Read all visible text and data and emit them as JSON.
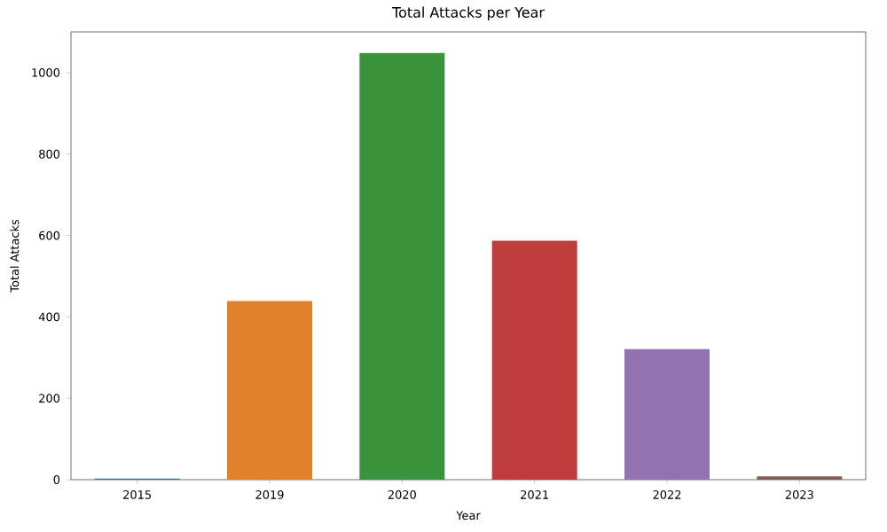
{
  "chart_data": {
    "type": "bar",
    "title": "Total Attacks per Year",
    "xlabel": "Year",
    "ylabel": "Total Attacks",
    "categories": [
      "2015",
      "2019",
      "2020",
      "2021",
      "2022",
      "2023"
    ],
    "values": [
      3,
      439,
      1048,
      587,
      321,
      8
    ],
    "colors": [
      "#3274a1",
      "#e1812c",
      "#3a923a",
      "#c03d3e",
      "#9372b2",
      "#845b53"
    ],
    "ylim": [
      0,
      1100
    ],
    "yticks": [
      0,
      200,
      400,
      600,
      800,
      1000
    ],
    "grid": false
  }
}
